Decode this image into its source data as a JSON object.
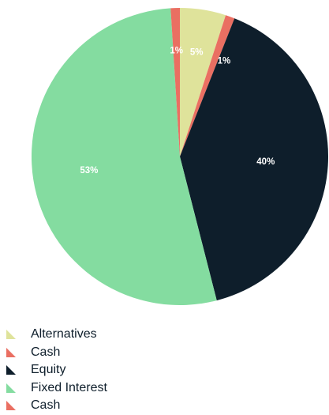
{
  "chart_data": {
    "type": "pie",
    "title": "",
    "start_angle_deg": 0,
    "direction": "clockwise",
    "slices": [
      {
        "label": "Alternatives",
        "value": 5,
        "value_label": "5%",
        "color": "#dfe39b",
        "legend_marker": "triangle"
      },
      {
        "label": "Cash",
        "value": 1,
        "value_label": "1%",
        "color": "#ea6f62",
        "legend_marker": "triangle"
      },
      {
        "label": "Equity",
        "value": 40,
        "value_label": "40%",
        "color": "#0e1e2b",
        "legend_marker": "triangle"
      },
      {
        "label": "Fixed Interest",
        "value": 53,
        "value_label": "53%",
        "color": "#84dca0",
        "legend_marker": "triangle"
      },
      {
        "label": "Cash",
        "value": 1,
        "value_label": "1%",
        "color": "#ea6f62",
        "legend_marker": "triangle"
      }
    ],
    "legend": {
      "placement": "bottom-left"
    }
  }
}
